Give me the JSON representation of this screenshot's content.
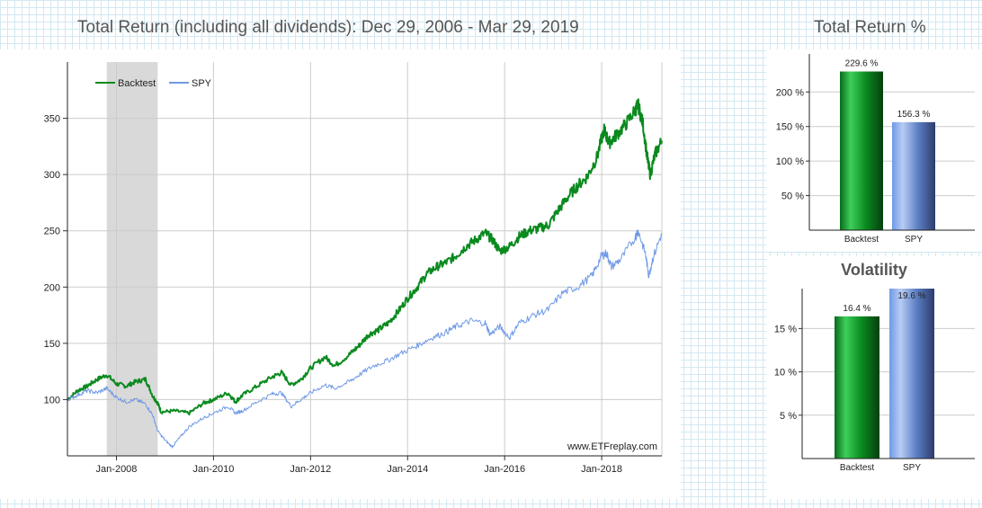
{
  "main_title": "Total Return (including all dividends): Dec 29, 2006 - Mar 29, 2019",
  "tr_title": "Total Return %",
  "vol_title": "Volatility",
  "watermark": "www.ETFreplay.com",
  "colors": {
    "backtest": "#0a8a1e",
    "spy": "#6f99e6",
    "recession": "#d9d9d9",
    "grid": "#cccccc"
  },
  "chart_data": [
    {
      "type": "line",
      "title": "Total Return (including all dividends): Dec 29, 2006 - Mar 29, 2019",
      "xlabel": "",
      "ylabel": "",
      "xlim": [
        2006.99,
        2019.24
      ],
      "ylim": [
        50,
        400
      ],
      "x_ticks": [
        2008,
        2010,
        2012,
        2014,
        2016,
        2018
      ],
      "x_tick_labels": [
        "Jan-2008",
        "Jan-2010",
        "Jan-2012",
        "Jan-2014",
        "Jan-2016",
        "Jan-2018"
      ],
      "y_ticks": [
        100,
        150,
        200,
        250,
        300,
        350
      ],
      "y_tick_labels": [
        "100",
        "150",
        "200",
        "250",
        "300",
        "350"
      ],
      "shaded_region": {
        "x0": 2007.8,
        "x1": 2008.85,
        "label": "recession"
      },
      "legend_location": "top-left",
      "series": [
        {
          "name": "Backtest",
          "points": [
            [
              2006.99,
              100
            ],
            [
              2007.2,
              108
            ],
            [
              2007.4,
              112
            ],
            [
              2007.6,
              118
            ],
            [
              2007.8,
              122
            ],
            [
              2008.0,
              114
            ],
            [
              2008.2,
              112
            ],
            [
              2008.4,
              116
            ],
            [
              2008.6,
              118
            ],
            [
              2008.75,
              103
            ],
            [
              2008.85,
              97
            ],
            [
              2008.92,
              89
            ],
            [
              2009.2,
              90
            ],
            [
              2009.5,
              88
            ],
            [
              2009.8,
              97
            ],
            [
              2010.0,
              100
            ],
            [
              2010.3,
              106
            ],
            [
              2010.45,
              98
            ],
            [
              2010.6,
              104
            ],
            [
              2010.9,
              112
            ],
            [
              2011.2,
              120
            ],
            [
              2011.4,
              124
            ],
            [
              2011.6,
              113
            ],
            [
              2011.8,
              118
            ],
            [
              2012.0,
              128
            ],
            [
              2012.3,
              138
            ],
            [
              2012.5,
              130
            ],
            [
              2012.8,
              140
            ],
            [
              2013.0,
              148
            ],
            [
              2013.2,
              158
            ],
            [
              2013.4,
              162
            ],
            [
              2013.6,
              168
            ],
            [
              2013.8,
              178
            ],
            [
              2014.0,
              190
            ],
            [
              2014.2,
              200
            ],
            [
              2014.4,
              212
            ],
            [
              2014.6,
              218
            ],
            [
              2014.8,
              222
            ],
            [
              2015.0,
              228
            ],
            [
              2015.2,
              236
            ],
            [
              2015.4,
              242
            ],
            [
              2015.6,
              248
            ],
            [
              2015.75,
              242
            ],
            [
              2015.9,
              232
            ],
            [
              2016.1,
              236
            ],
            [
              2016.3,
              245
            ],
            [
              2016.5,
              250
            ],
            [
              2016.7,
              252
            ],
            [
              2016.9,
              255
            ],
            [
              2017.1,
              268
            ],
            [
              2017.3,
              280
            ],
            [
              2017.5,
              290
            ],
            [
              2017.7,
              298
            ],
            [
              2017.9,
              315
            ],
            [
              2018.05,
              340
            ],
            [
              2018.15,
              328
            ],
            [
              2018.3,
              335
            ],
            [
              2018.5,
              345
            ],
            [
              2018.7,
              358
            ],
            [
              2018.75,
              362
            ],
            [
              2018.85,
              345
            ],
            [
              2018.95,
              312
            ],
            [
              2019.0,
              300
            ],
            [
              2019.1,
              318
            ],
            [
              2019.24,
              330
            ]
          ]
        },
        {
          "name": "SPY",
          "points": [
            [
              2006.99,
              100
            ],
            [
              2007.2,
              104
            ],
            [
              2007.4,
              108
            ],
            [
              2007.6,
              106
            ],
            [
              2007.8,
              110
            ],
            [
              2008.0,
              102
            ],
            [
              2008.2,
              98
            ],
            [
              2008.4,
              100
            ],
            [
              2008.6,
              96
            ],
            [
              2008.75,
              86
            ],
            [
              2008.85,
              72
            ],
            [
              2009.0,
              64
            ],
            [
              2009.15,
              58
            ],
            [
              2009.3,
              66
            ],
            [
              2009.5,
              76
            ],
            [
              2009.8,
              84
            ],
            [
              2010.0,
              88
            ],
            [
              2010.3,
              94
            ],
            [
              2010.45,
              88
            ],
            [
              2010.6,
              90
            ],
            [
              2010.9,
              98
            ],
            [
              2011.2,
              105
            ],
            [
              2011.4,
              106
            ],
            [
              2011.6,
              94
            ],
            [
              2011.8,
              100
            ],
            [
              2012.0,
              106
            ],
            [
              2012.3,
              113
            ],
            [
              2012.5,
              110
            ],
            [
              2012.8,
              116
            ],
            [
              2013.0,
              122
            ],
            [
              2013.3,
              130
            ],
            [
              2013.6,
              135
            ],
            [
              2013.9,
              142
            ],
            [
              2014.2,
              148
            ],
            [
              2014.5,
              155
            ],
            [
              2014.8,
              160
            ],
            [
              2015.0,
              165
            ],
            [
              2015.3,
              170
            ],
            [
              2015.6,
              168
            ],
            [
              2015.7,
              158
            ],
            [
              2015.9,
              165
            ],
            [
              2016.1,
              155
            ],
            [
              2016.3,
              168
            ],
            [
              2016.6,
              175
            ],
            [
              2016.9,
              180
            ],
            [
              2017.2,
              195
            ],
            [
              2017.5,
              200
            ],
            [
              2017.8,
              210
            ],
            [
              2018.0,
              228
            ],
            [
              2018.1,
              230
            ],
            [
              2018.2,
              218
            ],
            [
              2018.4,
              225
            ],
            [
              2018.7,
              245
            ],
            [
              2018.75,
              250
            ],
            [
              2018.9,
              230
            ],
            [
              2018.97,
              210
            ],
            [
              2019.05,
              225
            ],
            [
              2019.24,
              248
            ]
          ]
        }
      ]
    },
    {
      "type": "bar",
      "title": "Total Return %",
      "categories": [
        "Backtest",
        "SPY"
      ],
      "values": [
        229.6,
        156.3
      ],
      "value_labels": [
        "229.6 %",
        "156.3 %"
      ],
      "ylim": [
        0,
        255
      ],
      "y_ticks": [
        50,
        100,
        150,
        200
      ],
      "y_tick_labels": [
        "50 %",
        "100 %",
        "150 %",
        "200 %"
      ]
    },
    {
      "type": "bar",
      "title": "Volatility",
      "categories": [
        "Backtest",
        "SPY"
      ],
      "values": [
        16.4,
        19.6
      ],
      "value_labels": [
        "16.4 %",
        "19.6 %"
      ],
      "ylim": [
        0,
        19.6
      ],
      "y_ticks": [
        5,
        10,
        15
      ],
      "y_tick_labels": [
        "5 %",
        "10 %",
        "15 %"
      ]
    }
  ]
}
